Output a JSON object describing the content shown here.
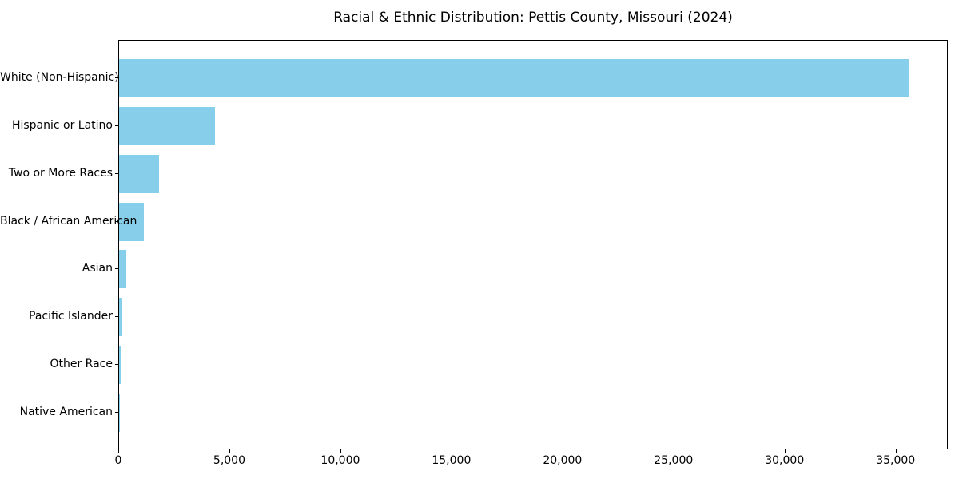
{
  "chart_data": {
    "type": "bar",
    "orientation": "horizontal",
    "title": "Racial & Ethnic Distribution: Pettis County, Missouri (2024)",
    "categories": [
      "White (Non-Hispanic)",
      "Hispanic or Latino",
      "Two or More Races",
      "Black / African American",
      "Asian",
      "Pacific Islander",
      "Other Race",
      "Native American"
    ],
    "values": [
      35560,
      4300,
      1790,
      1100,
      320,
      155,
      110,
      30
    ],
    "xlabel": "",
    "ylabel": "",
    "xlim": [
      0,
      37350
    ],
    "xticks": [
      0,
      5000,
      10000,
      15000,
      20000,
      25000,
      30000,
      35000
    ],
    "xtick_labels": [
      "0",
      "5,000",
      "10,000",
      "15,000",
      "20,000",
      "25,000",
      "30,000",
      "35,000"
    ],
    "bar_color": "#87CEEB",
    "axis_color": "#000000",
    "text_color": "#000000",
    "background_color": "#ffffff",
    "grid": false,
    "legend": "none"
  }
}
